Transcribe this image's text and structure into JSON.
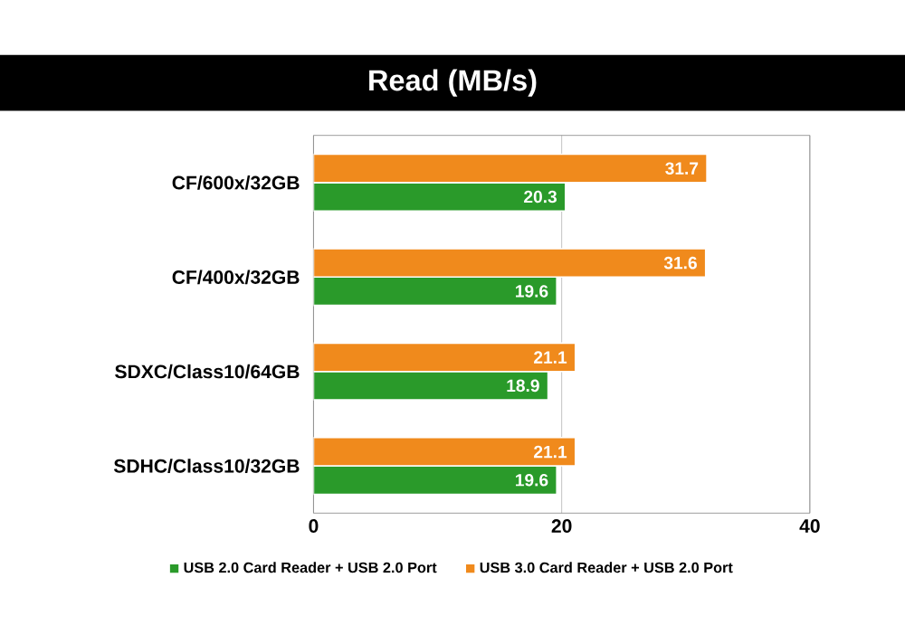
{
  "chart_data": {
    "type": "bar",
    "orientation": "horizontal",
    "title": "Read (MB/s)",
    "categories": [
      "CF/600x/32GB",
      "CF/400x/32GB",
      "SDXC/Class10/64GB",
      "SDHC/Class10/32GB"
    ],
    "series": [
      {
        "name": "USB 2.0 Card Reader + USB 2.0 Port",
        "color": "#2a9a2a",
        "values": [
          20.3,
          19.6,
          18.9,
          19.6
        ]
      },
      {
        "name": "USB 3.0 Card Reader + USB 2.0 Port",
        "color": "#f08a1c",
        "values": [
          31.7,
          31.6,
          21.1,
          21.1
        ]
      }
    ],
    "xlim": [
      0,
      40
    ],
    "xticks": [
      0,
      20,
      40
    ],
    "grid": "x",
    "legend": "bottom",
    "data_labels": true
  }
}
